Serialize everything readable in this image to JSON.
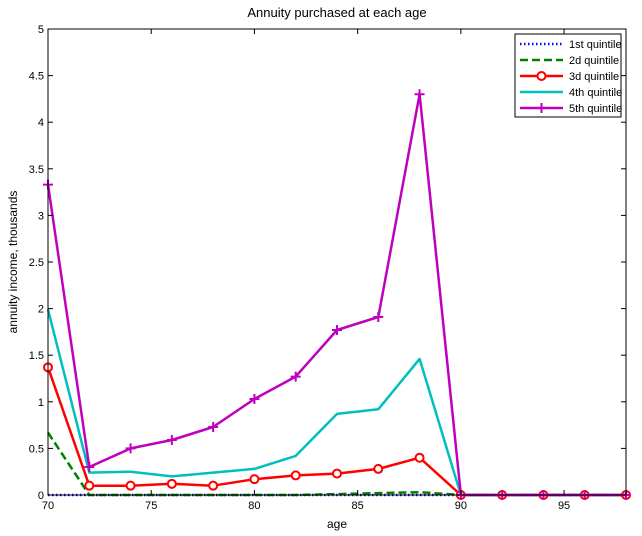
{
  "chart_data": {
    "type": "line",
    "title": "Annuity purchased at each age",
    "xlabel": "age",
    "ylabel": "annuity income, thousands",
    "xlim": [
      70,
      98
    ],
    "ylim": [
      0,
      5
    ],
    "xticks": [
      70,
      75,
      80,
      85,
      90,
      95
    ],
    "yticks": [
      0,
      0.5,
      1,
      1.5,
      2,
      2.5,
      3,
      3.5,
      4,
      4.5,
      5
    ],
    "ytick_labels": [
      "0",
      "0.5",
      "1",
      "1.5",
      "2",
      "2.5",
      "3",
      "3.5",
      "4",
      "4.5",
      "5"
    ],
    "grid": false,
    "legend_position": "top-right",
    "x": [
      70,
      72,
      74,
      76,
      78,
      80,
      82,
      84,
      86,
      88,
      90,
      92,
      94,
      96,
      98
    ],
    "series": [
      {
        "name": "1st quintile",
        "color": "#0000ff",
        "style": "dotted",
        "marker": "none",
        "values": [
          0,
          0,
          0,
          0,
          0,
          0,
          0,
          0,
          0,
          0,
          0,
          0,
          0,
          0,
          0
        ]
      },
      {
        "name": "2d quintile",
        "color": "#008000",
        "style": "dashed",
        "marker": "none",
        "values": [
          0.67,
          0,
          0,
          0,
          0,
          0,
          0,
          0.01,
          0.02,
          0.03,
          0,
          0,
          0,
          0,
          0
        ]
      },
      {
        "name": "3d quintile",
        "color": "#ff0000",
        "style": "solid",
        "marker": "circle",
        "values": [
          1.37,
          0.1,
          0.1,
          0.12,
          0.1,
          0.17,
          0.21,
          0.23,
          0.28,
          0.4,
          0,
          0,
          0,
          0,
          0
        ]
      },
      {
        "name": "4th quintile",
        "color": "#00bfbf",
        "style": "solid",
        "marker": "none",
        "values": [
          1.99,
          0.24,
          0.25,
          0.2,
          0.24,
          0.28,
          0.42,
          0.87,
          0.92,
          1.46,
          0,
          0,
          0,
          0,
          0
        ]
      },
      {
        "name": "5th quintile",
        "color": "#bf00bf",
        "style": "solid",
        "marker": "plus",
        "values": [
          3.33,
          0.3,
          0.5,
          0.59,
          0.73,
          1.03,
          1.27,
          1.77,
          1.91,
          4.3,
          0,
          0,
          0,
          0,
          0
        ]
      }
    ]
  }
}
